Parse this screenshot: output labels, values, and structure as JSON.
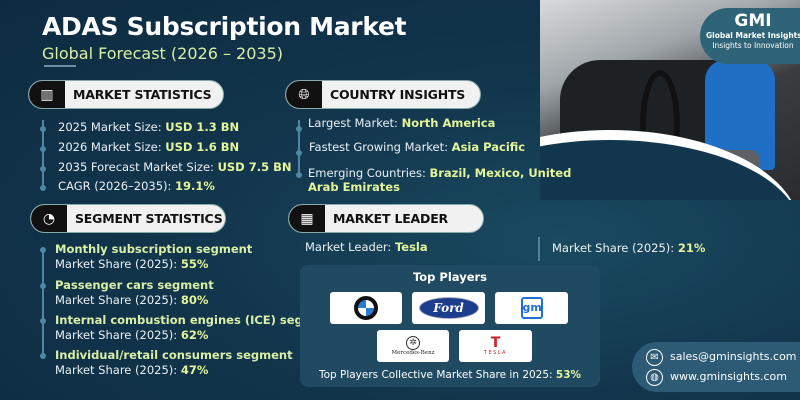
{
  "header": {
    "title": "ADAS Subscription Market",
    "subtitle": "Global Forecast (2026 – 2035)"
  },
  "brand": {
    "logo_text": "GMI",
    "name": "Global Market Insights",
    "tagline": "Insights to Innovation"
  },
  "market_statistics": {
    "heading": "MARKET STATISTICS",
    "icon": "chart-globe-icon",
    "items": [
      {
        "label": "2025 Market Size: ",
        "value": "USD 1.3 BN"
      },
      {
        "label": "2026 Market Size: ",
        "value": "USD 1.6 BN"
      },
      {
        "label": "2035 Forecast Market Size: ",
        "value": "USD 7.5 BN"
      },
      {
        "label": "CAGR (2026–2035): ",
        "value": "19.1%"
      }
    ]
  },
  "country_insights": {
    "heading": "COUNTRY INSIGHTS",
    "icon": "globe-icon",
    "items": [
      {
        "label": "Largest Market: ",
        "value": "North America"
      },
      {
        "label": "Fastest Growing Market: ",
        "value": "Asia Pacific"
      },
      {
        "label": "Emerging Countries: ",
        "value": "Brazil, Mexico, United",
        "value2": "Arab Emirates"
      }
    ]
  },
  "segment_statistics": {
    "heading": "SEGMENT STATISTICS",
    "icon": "segment-chart-icon",
    "items": [
      {
        "segment": "Monthly subscription segment",
        "label": "Market Share (2025): ",
        "value": "55%"
      },
      {
        "segment": "Passenger cars segment",
        "label": "Market Share (2025): ",
        "value": "80%"
      },
      {
        "segment": "Internal combustion engines (ICE) segment",
        "label": "Market Share (2025): ",
        "value": "62%"
      },
      {
        "segment": "Individual/retail consumers segment",
        "label": "Market Share (2025): ",
        "value": "47%"
      }
    ]
  },
  "market_leader": {
    "heading": "MARKET LEADER",
    "icon": "leader-chart-icon",
    "leader_label": "Market Leader: ",
    "leader": "Tesla",
    "share_label": "Market Share (2025): ",
    "share": "21%"
  },
  "top_players": {
    "heading": "Top Players",
    "logos": [
      "BMW",
      "Ford",
      "GM",
      "Mercedes-Benz",
      "TESLA"
    ],
    "collective_label": "Top Players Collective Market Share in 2025: ",
    "collective_value": "53%"
  },
  "contact": {
    "email": "sales@gminsights.com",
    "website": "www.gminsights.com"
  },
  "colors": {
    "background": "#12364d",
    "accent": "#e4f59a",
    "pill": "#f1f1f1"
  }
}
